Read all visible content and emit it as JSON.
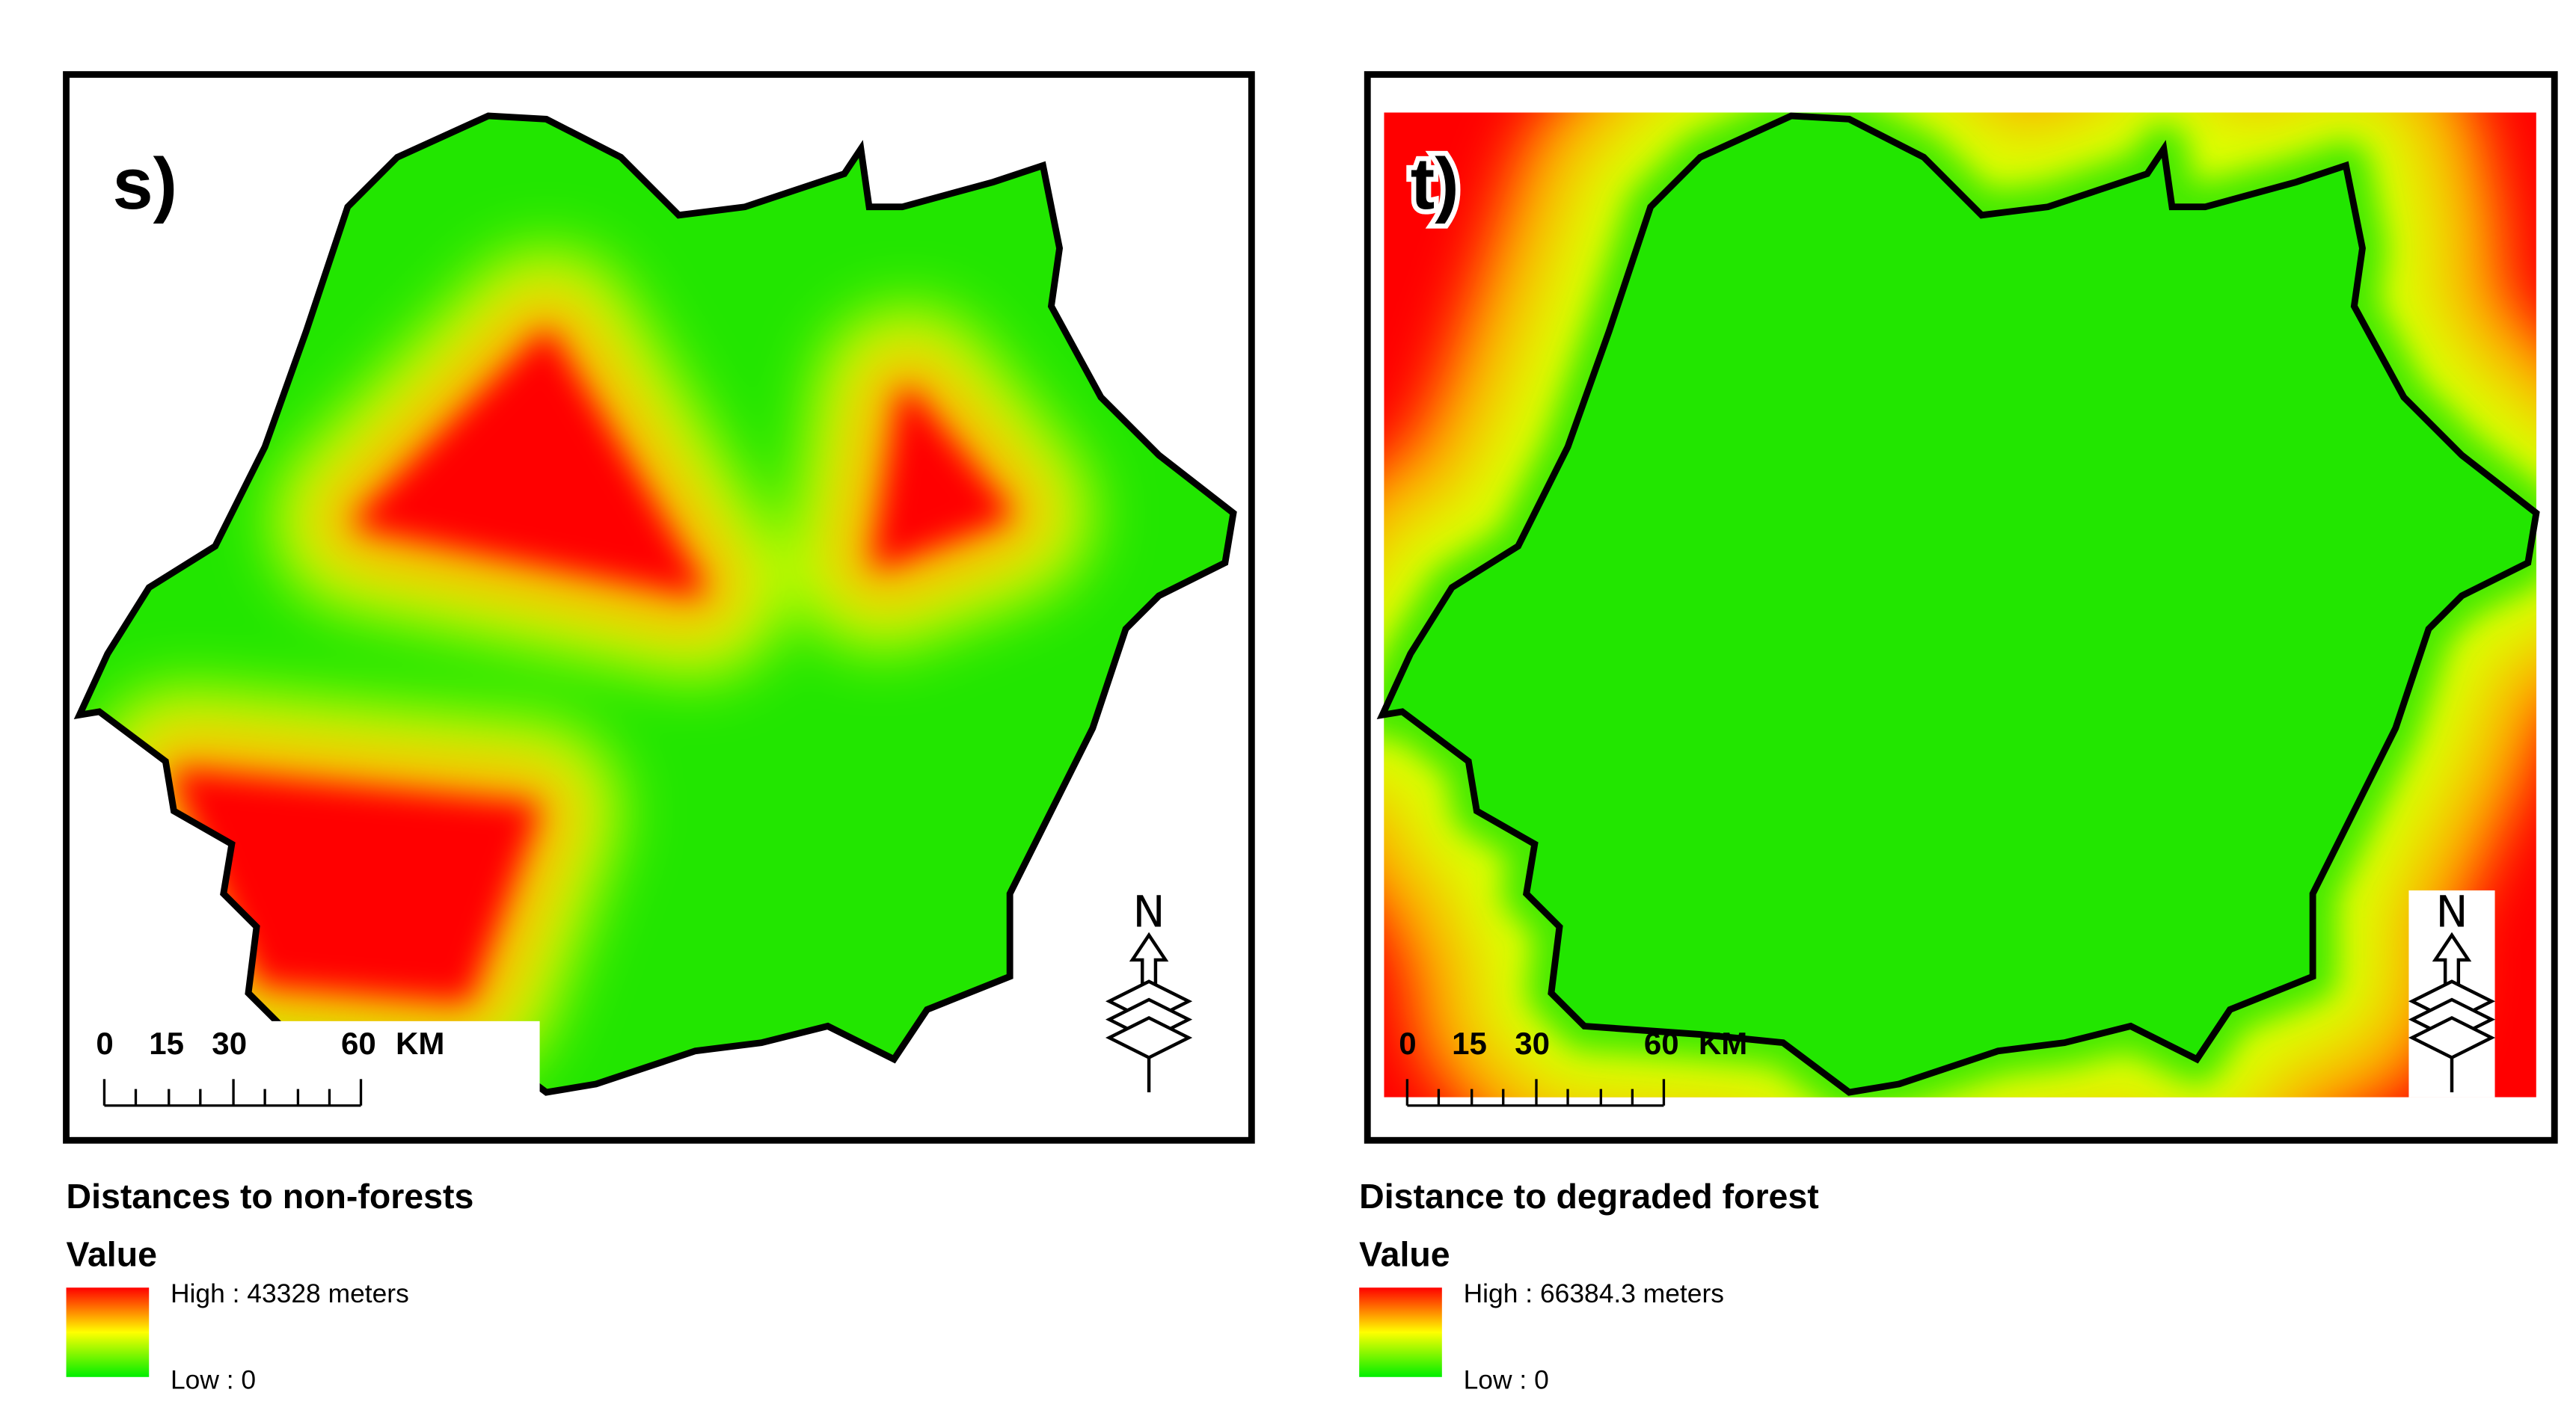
{
  "panels": [
    {
      "label": "s)",
      "title": "Distances to non-forests",
      "legend_heading": "Value",
      "high_label": "High : 43328 meters",
      "low_label": "Low : 0",
      "scale_labels": [
        "0",
        "15",
        "30",
        "60",
        "KM"
      ],
      "north_label": "N"
    },
    {
      "label": "t)",
      "title": "Distance to degraded forest",
      "legend_heading": "Value",
      "high_label": "High : 66384.3 meters",
      "low_label": "Low : 0",
      "scale_labels": [
        "0",
        "15",
        "30",
        "60",
        "KM"
      ],
      "north_label": "N"
    }
  ]
}
